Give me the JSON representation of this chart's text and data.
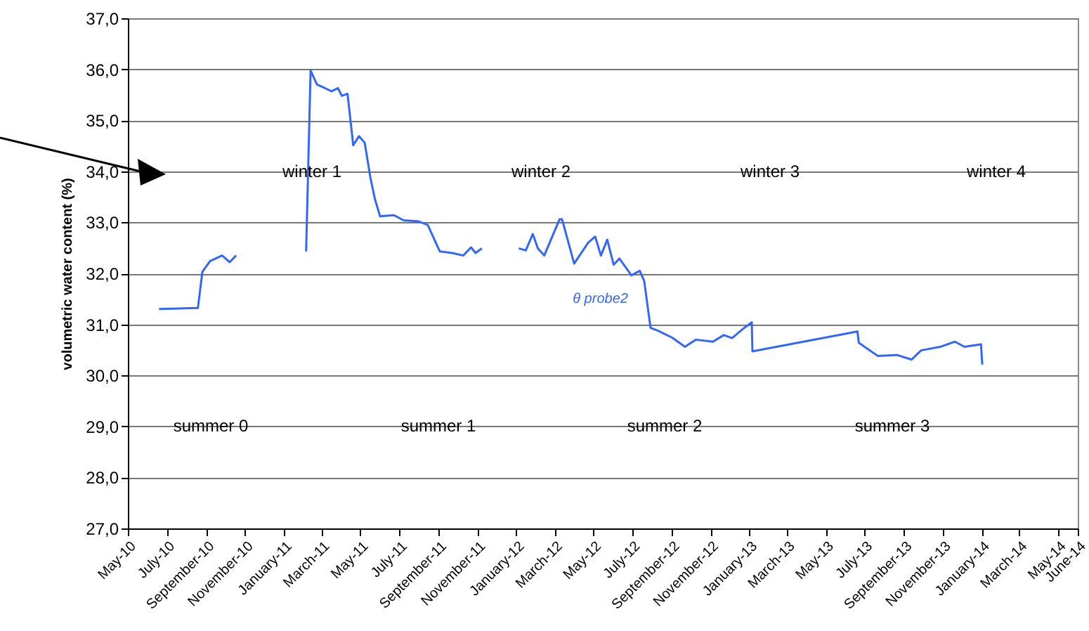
{
  "chart_data": {
    "type": "line",
    "ylabel": "volumetric water content (%)",
    "x": [
      "2010-06-19",
      "2010-08-19",
      "2010-08-26",
      "2010-09-07",
      "2010-09-26",
      "2010-10-08",
      "2010-10-18",
      "2010-12-15",
      "2011-02-05",
      "2011-02-12",
      "2011-02-22",
      "2011-03-05",
      "2011-03-17",
      "2011-03-27",
      "2011-04-02",
      "2011-04-11",
      "2011-04-20",
      "2011-04-29",
      "2011-05-08",
      "2011-05-17",
      "2011-05-24",
      "2011-06-01",
      "2011-06-23",
      "2011-07-08",
      "2011-07-31",
      "2011-08-15",
      "2011-09-03",
      "2011-09-22",
      "2011-10-10",
      "2011-10-22",
      "2011-10-29",
      "2011-11-08",
      "2011-12-10",
      "2012-01-05",
      "2012-01-16",
      "2012-01-27",
      "2012-02-04",
      "2012-02-14",
      "2012-03-09",
      "2012-03-13",
      "2012-04-01",
      "2012-04-23",
      "2012-05-04",
      "2012-05-13",
      "2012-05-23",
      "2012-06-02",
      "2012-06-11",
      "2012-06-30",
      "2012-07-13",
      "2012-07-20",
      "2012-07-30",
      "2012-08-10",
      "2012-09-02",
      "2012-09-22",
      "2012-10-09",
      "2012-11-05",
      "2012-11-22",
      "2012-12-05",
      "2012-12-24",
      "2013-01-05",
      "2013-01-06",
      "2013-06-20",
      "2013-06-22",
      "2013-07-22",
      "2013-08-21",
      "2013-09-13",
      "2013-09-28",
      "2013-10-28",
      "2013-11-20",
      "2013-12-05",
      "2013-12-31",
      "2014-01-02"
    ],
    "series": [
      {
        "color": "#3366ff",
        "values": [
          31.3,
          31.32,
          32.03,
          32.24,
          32.35,
          32.22,
          32.35,
          null,
          32.43,
          35.98,
          35.7,
          35.64,
          35.57,
          35.63,
          35.48,
          35.52,
          34.51,
          34.69,
          34.56,
          33.87,
          33.46,
          33.12,
          33.14,
          33.04,
          33.02,
          32.95,
          32.43,
          32.4,
          32.35,
          32.51,
          32.4,
          32.49,
          null,
          32.49,
          32.45,
          32.77,
          32.49,
          32.35,
          33.06,
          33.06,
          32.19,
          32.6,
          32.72,
          32.35,
          32.66,
          32.17,
          32.29,
          31.96,
          32.05,
          31.85,
          30.93,
          30.88,
          30.74,
          30.56,
          30.7,
          30.66,
          30.79,
          30.73,
          30.93,
          31.04,
          30.47,
          30.86,
          30.64,
          30.38,
          30.4,
          30.31,
          30.49,
          30.56,
          30.66,
          30.56,
          30.61,
          30.21
        ]
      }
    ],
    "xlim": [
      "2010-05-01",
      "2014-06-01"
    ],
    "xticks": [
      {
        "value": "2010-05-01",
        "label": "May-10"
      },
      {
        "value": "2010-07-01",
        "label": "July-10"
      },
      {
        "value": "2010-09-01",
        "label": "September-10"
      },
      {
        "value": "2010-11-01",
        "label": "November-10"
      },
      {
        "value": "2011-01-01",
        "label": "January-11"
      },
      {
        "value": "2011-03-01",
        "label": "March-11"
      },
      {
        "value": "2011-05-01",
        "label": "May-11"
      },
      {
        "value": "2011-07-01",
        "label": "July-11"
      },
      {
        "value": "2011-09-01",
        "label": "September-11"
      },
      {
        "value": "2011-11-01",
        "label": "November-11"
      },
      {
        "value": "2012-01-01",
        "label": "January-12"
      },
      {
        "value": "2012-03-01",
        "label": "March-12"
      },
      {
        "value": "2012-05-01",
        "label": "May-12"
      },
      {
        "value": "2012-07-01",
        "label": "July-12"
      },
      {
        "value": "2012-09-01",
        "label": "September-12"
      },
      {
        "value": "2012-11-01",
        "label": "November-12"
      },
      {
        "value": "2013-01-01",
        "label": "January-13"
      },
      {
        "value": "2013-03-01",
        "label": "March-13"
      },
      {
        "value": "2013-05-01",
        "label": "May-13"
      },
      {
        "value": "2013-07-01",
        "label": "July-13"
      },
      {
        "value": "2013-09-01",
        "label": "September-13"
      },
      {
        "value": "2013-11-01",
        "label": "November-13"
      },
      {
        "value": "2014-01-01",
        "label": "January-14"
      },
      {
        "value": "2014-03-01",
        "label": "March-14"
      },
      {
        "value": "2014-05-01",
        "label": "May-14"
      },
      {
        "value": "2014-06-01",
        "label": "June-14"
      }
    ],
    "ylim": [
      27,
      37
    ],
    "yticks": [
      {
        "value": 27,
        "label": "27,0"
      },
      {
        "value": 28,
        "label": "28,0"
      },
      {
        "value": 29,
        "label": "29,0"
      },
      {
        "value": 30,
        "label": "30,0"
      },
      {
        "value": 31,
        "label": "31,0"
      },
      {
        "value": 32,
        "label": "32,0"
      },
      {
        "value": 33,
        "label": "33,0"
      },
      {
        "value": 34,
        "label": "34,0"
      },
      {
        "value": 35,
        "label": "35,0"
      },
      {
        "value": 36,
        "label": "36,0"
      },
      {
        "value": 37,
        "label": "37,0"
      }
    ],
    "grid": "y",
    "annotations": [
      "winter 1",
      "winter 2",
      "winter 3",
      "winter 4",
      "summer 0",
      "summer 1",
      "summer 2",
      "summer 3",
      {
        "text": "θ probe2",
        "x": "2012-07-13",
        "y": 32.05
      }
    ]
  }
}
